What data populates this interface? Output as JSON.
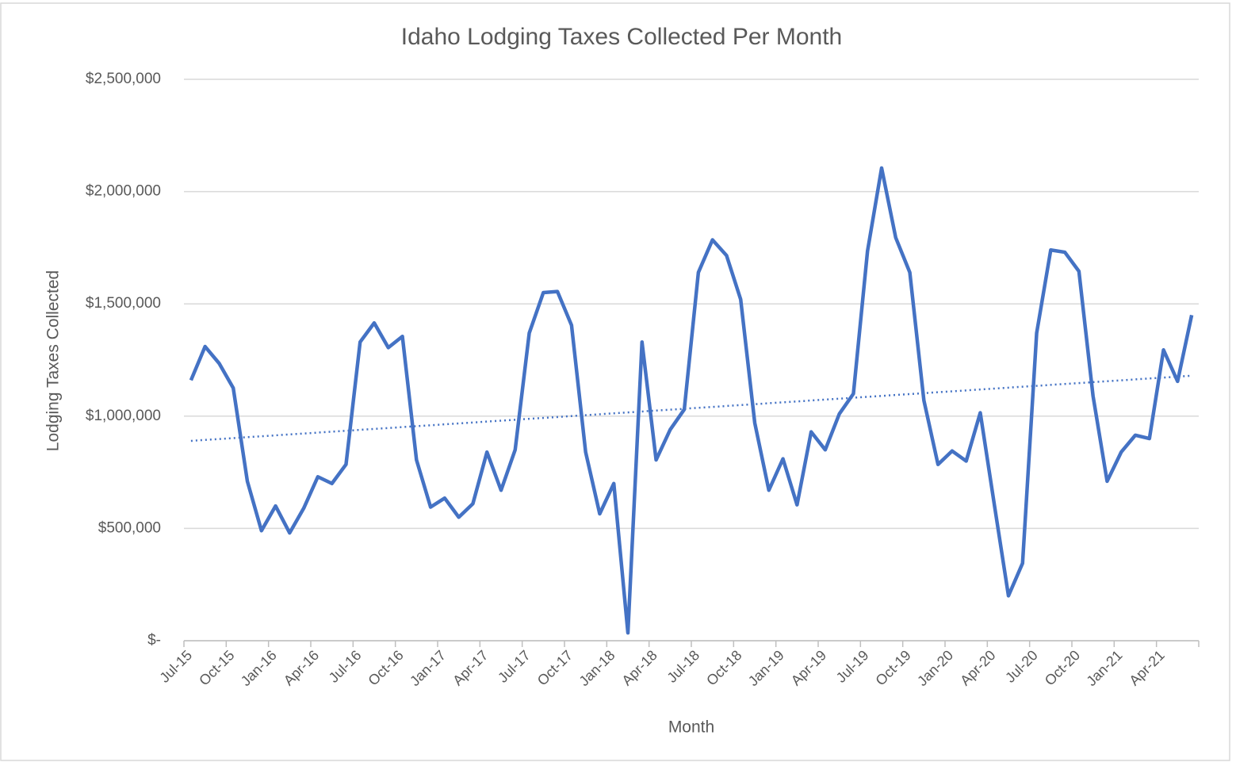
{
  "chart_data": {
    "type": "line",
    "title": "Idaho Lodging Taxes Collected Per Month",
    "x_label": "Month",
    "y_label": "Lodging Taxes Collected",
    "categories": [
      "Jul-15",
      null,
      null,
      "Oct-15",
      null,
      null,
      "Jan-16",
      null,
      null,
      "Apr-16",
      null,
      null,
      "Jul-16",
      null,
      null,
      "Oct-16",
      null,
      null,
      "Jan-17",
      null,
      null,
      "Apr-17",
      null,
      null,
      "Jul-17",
      null,
      null,
      "Oct-17",
      null,
      null,
      "Jan-18",
      null,
      null,
      "Apr-18",
      null,
      null,
      "Jul-18",
      null,
      null,
      "Oct-18",
      null,
      null,
      "Jan-19",
      null,
      null,
      "Apr-19",
      null,
      null,
      "Jul-19",
      null,
      null,
      "Oct-19",
      null,
      null,
      "Jan-20",
      null,
      null,
      "Apr-20",
      null,
      null,
      "Jul-20",
      null,
      null,
      "Oct-20",
      null,
      null,
      "Jan-21",
      null,
      null,
      "Apr-21",
      null,
      null
    ],
    "values": [
      1160000,
      1310000,
      1235000,
      1125000,
      710000,
      490000,
      600000,
      480000,
      590000,
      730000,
      700000,
      785000,
      1330000,
      1415000,
      1305000,
      1355000,
      805000,
      595000,
      635000,
      550000,
      610000,
      840000,
      670000,
      850000,
      1370000,
      1550000,
      1555000,
      1405000,
      840000,
      565000,
      700000,
      35000,
      1330000,
      805000,
      940000,
      1030000,
      1640000,
      1785000,
      1715000,
      1520000,
      970000,
      670000,
      810000,
      605000,
      930000,
      850000,
      1010000,
      1100000,
      1735000,
      2105000,
      1795000,
      1640000,
      1070000,
      785000,
      845000,
      800000,
      1015000,
      605000,
      200000,
      345000,
      1370000,
      1740000,
      1730000,
      1645000,
      1090000,
      710000,
      840000,
      915000,
      900000,
      1295000,
      1155000,
      1450000
    ],
    "color": "#4472c4",
    "trendline": {
      "values": [
        890000,
        1180000
      ],
      "color": "#4472c4",
      "style": "dotted"
    },
    "ylim": [
      0,
      2500000
    ],
    "yticks": [
      {
        "value": 0,
        "label": "$-"
      },
      {
        "value": 500000,
        "label": "$500,000"
      },
      {
        "value": 1000000,
        "label": "$1,000,000"
      },
      {
        "value": 1500000,
        "label": "$1,500,000"
      },
      {
        "value": 2000000,
        "label": "$2,000,000"
      },
      {
        "value": 2500000,
        "label": "$2,500,000"
      }
    ],
    "grid": true
  }
}
